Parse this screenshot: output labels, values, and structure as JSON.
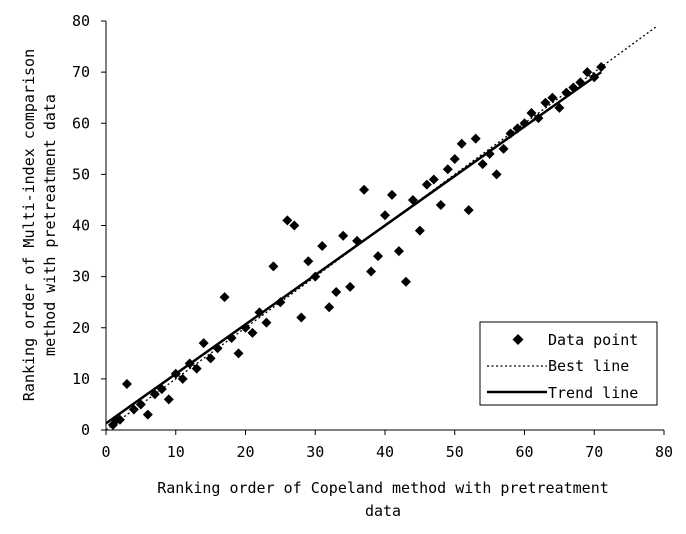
{
  "chart_data": {
    "type": "scatter",
    "xlabel_lines": [
      "Ranking order of Copeland method with pretreatment",
      "data"
    ],
    "ylabel_lines": [
      "Ranking order of Multi-index comparison",
      "method with pretreatment data"
    ],
    "xlim": [
      0,
      80
    ],
    "ylim": [
      0,
      80
    ],
    "xticks": [
      0,
      10,
      20,
      30,
      40,
      50,
      60,
      70,
      80
    ],
    "yticks": [
      0,
      10,
      20,
      30,
      40,
      50,
      60,
      70,
      80
    ],
    "grid": false,
    "legend_position": "bottom-right",
    "series": [
      {
        "name": "Data point",
        "style": "diamond-marker",
        "points": [
          [
            1,
            1
          ],
          [
            1.5,
            2
          ],
          [
            2,
            2
          ],
          [
            3,
            9
          ],
          [
            4,
            4
          ],
          [
            5,
            5
          ],
          [
            6,
            3
          ],
          [
            7,
            7
          ],
          [
            8,
            8
          ],
          [
            9,
            6
          ],
          [
            10,
            11
          ],
          [
            11,
            10
          ],
          [
            12,
            13
          ],
          [
            13,
            12
          ],
          [
            14,
            17
          ],
          [
            15,
            14
          ],
          [
            16,
            16
          ],
          [
            17,
            26
          ],
          [
            18,
            18
          ],
          [
            19,
            15
          ],
          [
            20,
            20
          ],
          [
            21,
            19
          ],
          [
            22,
            23
          ],
          [
            23,
            21
          ],
          [
            24,
            32
          ],
          [
            25,
            25
          ],
          [
            26,
            41
          ],
          [
            27,
            40
          ],
          [
            28,
            22
          ],
          [
            29,
            33
          ],
          [
            30,
            30
          ],
          [
            31,
            36
          ],
          [
            32,
            24
          ],
          [
            33,
            27
          ],
          [
            34,
            38
          ],
          [
            35,
            28
          ],
          [
            36,
            37
          ],
          [
            37,
            47
          ],
          [
            38,
            31
          ],
          [
            39,
            34
          ],
          [
            40,
            42
          ],
          [
            41,
            46
          ],
          [
            42,
            35
          ],
          [
            43,
            29
          ],
          [
            44,
            45
          ],
          [
            45,
            39
          ],
          [
            46,
            48
          ],
          [
            47,
            49
          ],
          [
            48,
            44
          ],
          [
            49,
            51
          ],
          [
            50,
            53
          ],
          [
            51,
            56
          ],
          [
            52,
            43
          ],
          [
            53,
            57
          ],
          [
            54,
            52
          ],
          [
            55,
            54
          ],
          [
            56,
            50
          ],
          [
            57,
            55
          ],
          [
            58,
            58
          ],
          [
            59,
            59
          ],
          [
            60,
            60
          ],
          [
            61,
            62
          ],
          [
            62,
            61
          ],
          [
            63,
            64
          ],
          [
            64,
            65
          ],
          [
            65,
            63
          ],
          [
            66,
            66
          ],
          [
            67,
            67
          ],
          [
            68,
            68
          ],
          [
            69,
            70
          ],
          [
            70,
            69
          ],
          [
            71,
            71
          ]
        ]
      },
      {
        "name": "Best line",
        "style": "dotted",
        "from": [
          0,
          0
        ],
        "to": [
          79,
          79
        ]
      },
      {
        "name": "Trend line",
        "style": "solid",
        "from": [
          0,
          1.3
        ],
        "to": [
          71,
          70
        ]
      }
    ]
  }
}
